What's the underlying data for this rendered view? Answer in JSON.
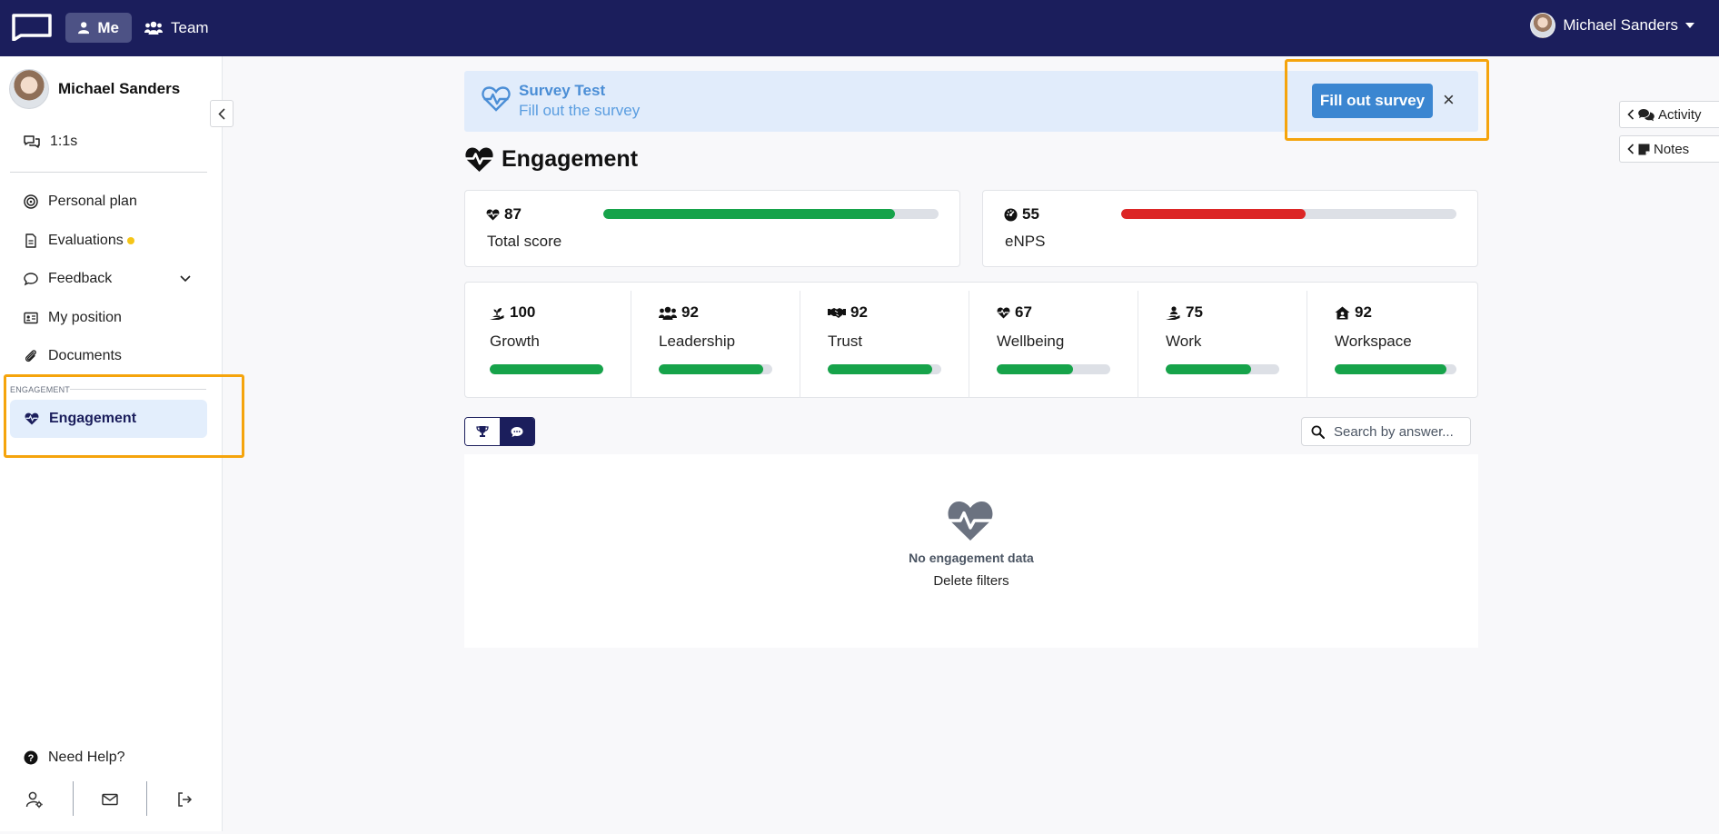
{
  "topbar": {
    "nav_me": "Me",
    "nav_team": "Team",
    "user_name": "Michael Sanders"
  },
  "sidebar": {
    "profile_name": "Michael Sanders",
    "one_on_ones": "1:1s",
    "items": [
      {
        "label": "Personal plan"
      },
      {
        "label": "Evaluations"
      },
      {
        "label": "Feedback"
      },
      {
        "label": "My position"
      },
      {
        "label": "Documents"
      }
    ],
    "section_label": "ENGAGEMENT",
    "active_item": "Engagement",
    "help": "Need Help?"
  },
  "banner": {
    "title": "Survey Test",
    "subtitle": "Fill out the survey",
    "button": "Fill out survey",
    "close": "×"
  },
  "page": {
    "title": "Engagement"
  },
  "scores": {
    "total": {
      "value": "87",
      "label": "Total score",
      "fill": 0.87,
      "color": "#16a34a"
    },
    "enps": {
      "value": "55",
      "label": "eNPS",
      "fill": 0.55,
      "color": "#dc2626"
    }
  },
  "categories": [
    {
      "value": "100",
      "label": "Growth",
      "fill": 1.0
    },
    {
      "value": "92",
      "label": "Leadership",
      "fill": 0.92
    },
    {
      "value": "92",
      "label": "Trust",
      "fill": 0.92
    },
    {
      "value": "67",
      "label": "Wellbeing",
      "fill": 0.67
    },
    {
      "value": "75",
      "label": "Work",
      "fill": 0.75
    },
    {
      "value": "92",
      "label": "Workspace",
      "fill": 0.92
    }
  ],
  "search": {
    "placeholder": "Search by answer..."
  },
  "empty": {
    "title": "No engagement data",
    "link": "Delete filters"
  },
  "side_tabs": {
    "activity": "Activity",
    "notes": "Notes"
  },
  "colors": {
    "navy": "#1b1e5c",
    "green": "#16a34a",
    "red": "#dc2626",
    "accent_blue": "#3b86d1",
    "highlight": "#f5a40c"
  }
}
